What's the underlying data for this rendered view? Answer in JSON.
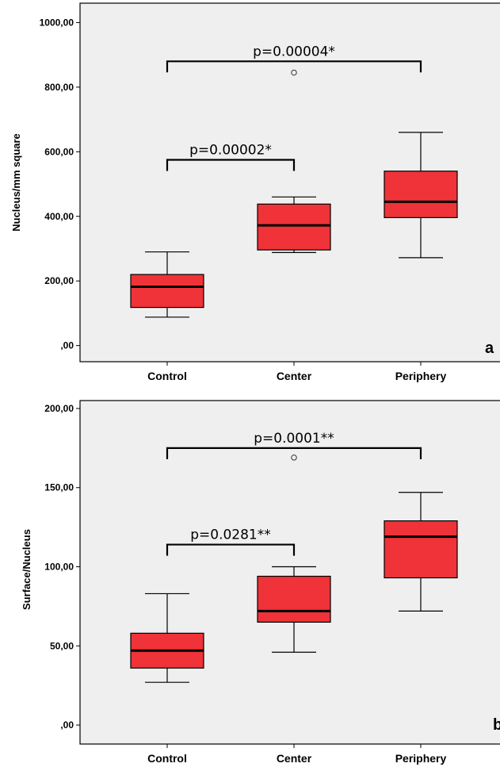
{
  "colors": {
    "plot_background": "#efefef",
    "box_fill": "#ef3338",
    "outline": "#000000"
  },
  "chart_data": [
    {
      "type": "box",
      "panel_label": "a",
      "ylabel": "Nucleus/mm square",
      "categories": [
        "Control",
        "Center",
        "Periphery"
      ],
      "ylim": [
        -50,
        1060
      ],
      "y_ticks": [
        0,
        200,
        400,
        600,
        800,
        1000
      ],
      "y_tick_labels": [
        ",00",
        "200,00",
        "400,00",
        "600,00",
        "800,00",
        "1000,00"
      ],
      "grid": false,
      "boxes": [
        {
          "category": "Control",
          "whisker_low": 88,
          "q1": 118,
          "median": 182,
          "q3": 220,
          "whisker_high": 290,
          "outliers": []
        },
        {
          "category": "Center",
          "whisker_low": 288,
          "q1": 296,
          "median": 372,
          "q3": 438,
          "whisker_high": 460,
          "outliers": [
            845
          ]
        },
        {
          "category": "Periphery",
          "whisker_low": 272,
          "q1": 396,
          "median": 445,
          "q3": 540,
          "whisker_high": 660,
          "outliers": []
        }
      ],
      "annotations": [
        {
          "text": "p=0.00002*",
          "from": "Control",
          "to": "Center",
          "y": 575
        },
        {
          "text": "p=0.00004*",
          "from": "Control",
          "to": "Periphery",
          "y": 880
        }
      ]
    },
    {
      "type": "box",
      "panel_label": "b",
      "ylabel": "Surface/Nucleus",
      "categories": [
        "Control",
        "Center",
        "Periphery"
      ],
      "ylim": [
        -12,
        205
      ],
      "y_ticks": [
        0,
        50,
        100,
        150,
        200
      ],
      "y_tick_labels": [
        ",00",
        "50,00",
        "100,00",
        "150,00",
        "200,00"
      ],
      "grid": false,
      "boxes": [
        {
          "category": "Control",
          "whisker_low": 27,
          "q1": 36,
          "median": 47,
          "q3": 58,
          "whisker_high": 83,
          "outliers": []
        },
        {
          "category": "Center",
          "whisker_low": 46,
          "q1": 65,
          "median": 72,
          "q3": 94,
          "whisker_high": 100,
          "outliers": [
            169
          ]
        },
        {
          "category": "Periphery",
          "whisker_low": 72,
          "q1": 93,
          "median": 119,
          "q3": 129,
          "whisker_high": 147,
          "outliers": []
        }
      ],
      "annotations": [
        {
          "text": "p=0.0281**",
          "from": "Control",
          "to": "Center",
          "y": 114
        },
        {
          "text": "p=0.0001**",
          "from": "Control",
          "to": "Periphery",
          "y": 175
        }
      ]
    }
  ]
}
